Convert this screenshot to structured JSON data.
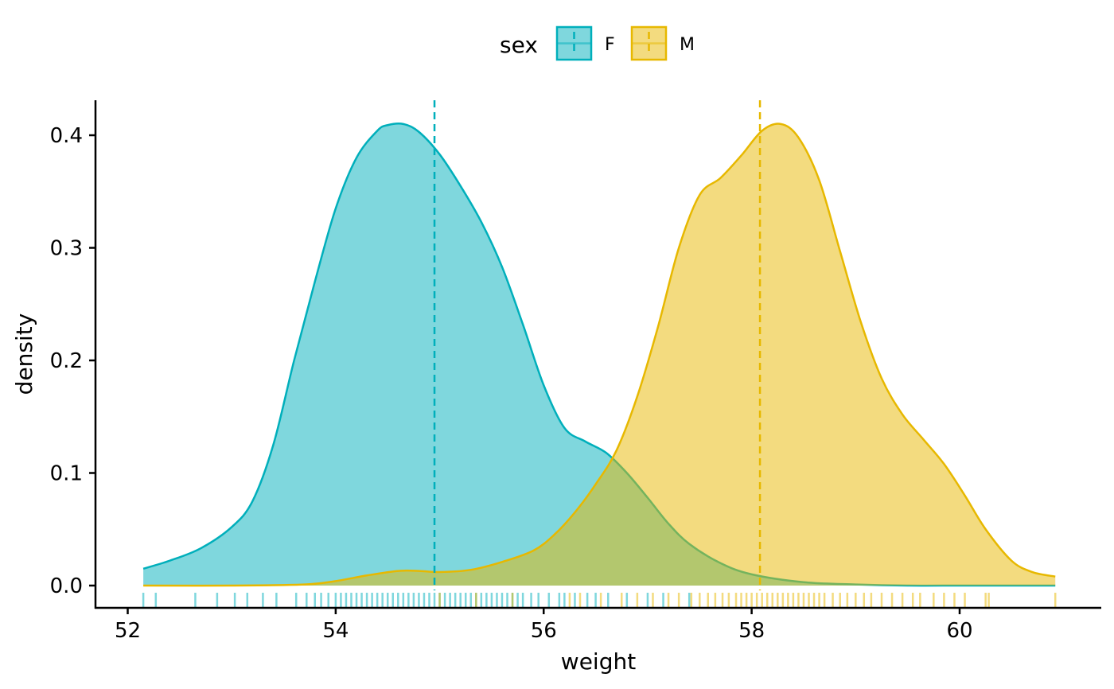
{
  "chart_data": {
    "type": "area",
    "xlabel": "weight",
    "ylabel": "density",
    "xlim": [
      51.8,
      61.7
    ],
    "ylim": [
      -0.02,
      0.43
    ],
    "x_ticks": [
      52,
      54,
      56,
      58,
      60
    ],
    "y_ticks": [
      0.0,
      0.1,
      0.2,
      0.3,
      0.4
    ],
    "y_tick_labels": [
      "0.0",
      "0.1",
      "0.2",
      "0.3",
      "0.4"
    ],
    "grid": false,
    "legend": {
      "title": "sex",
      "position": "top",
      "entries": [
        "F",
        "M"
      ]
    },
    "series": [
      {
        "name": "F",
        "color": "#00AFBB",
        "fill": "#00AFBB",
        "fill_opacity": 0.5,
        "mean": 54.95,
        "x": [
          52.15,
          52.4,
          52.7,
          53.0,
          53.2,
          53.4,
          53.6,
          53.8,
          54.0,
          54.2,
          54.4,
          54.5,
          54.65,
          54.8,
          55.0,
          55.2,
          55.4,
          55.6,
          55.8,
          56.0,
          56.2,
          56.4,
          56.6,
          56.8,
          57.0,
          57.2,
          57.4,
          57.7,
          58.0,
          58.5,
          59.0,
          59.5,
          60.0,
          60.5,
          60.92
        ],
        "y": [
          0.015,
          0.022,
          0.033,
          0.052,
          0.075,
          0.125,
          0.2,
          0.27,
          0.335,
          0.38,
          0.404,
          0.409,
          0.41,
          0.403,
          0.383,
          0.355,
          0.323,
          0.283,
          0.232,
          0.178,
          0.14,
          0.128,
          0.118,
          0.1,
          0.078,
          0.055,
          0.037,
          0.02,
          0.01,
          0.003,
          0.001,
          0.0,
          0.0,
          0.0,
          0.0
        ]
      },
      {
        "name": "M",
        "color": "#E7B800",
        "fill": "#E7B800",
        "fill_opacity": 0.5,
        "mean": 58.08,
        "x": [
          52.15,
          53.0,
          53.7,
          54.0,
          54.3,
          54.6,
          54.8,
          55.0,
          55.3,
          55.6,
          55.9,
          56.1,
          56.3,
          56.5,
          56.7,
          56.9,
          57.1,
          57.3,
          57.5,
          57.7,
          57.9,
          58.1,
          58.28,
          58.45,
          58.65,
          58.85,
          59.05,
          59.25,
          59.45,
          59.65,
          59.85,
          60.05,
          60.25,
          60.5,
          60.7,
          60.92
        ],
        "y": [
          0.0,
          0.0,
          0.001,
          0.004,
          0.009,
          0.013,
          0.013,
          0.012,
          0.014,
          0.021,
          0.031,
          0.045,
          0.065,
          0.09,
          0.12,
          0.168,
          0.23,
          0.3,
          0.347,
          0.362,
          0.382,
          0.404,
          0.41,
          0.398,
          0.36,
          0.297,
          0.234,
          0.184,
          0.152,
          0.13,
          0.108,
          0.08,
          0.05,
          0.022,
          0.012,
          0.008
        ]
      }
    ],
    "rug": {
      "F": [
        52.15,
        52.27,
        52.65,
        52.86,
        53.03,
        53.15,
        53.3,
        53.43,
        53.62,
        53.72,
        53.8,
        53.86,
        53.93,
        54.0,
        54.05,
        54.1,
        54.15,
        54.2,
        54.25,
        54.3,
        54.35,
        54.4,
        54.45,
        54.5,
        54.55,
        54.6,
        54.65,
        54.7,
        54.75,
        54.8,
        54.85,
        54.9,
        54.95,
        55.0,
        55.05,
        55.1,
        55.15,
        55.2,
        55.25,
        55.3,
        55.35,
        55.4,
        55.45,
        55.5,
        55.55,
        55.6,
        55.65,
        55.7,
        55.75,
        55.8,
        55.88,
        55.95,
        56.05,
        56.15,
        56.2,
        56.3,
        56.42,
        56.5,
        56.62,
        56.8,
        57.0,
        57.15,
        57.4
      ],
      "M": [
        55.0,
        55.35,
        55.7,
        56.25,
        56.35,
        56.55,
        56.75,
        56.9,
        57.05,
        57.2,
        57.3,
        57.42,
        57.5,
        57.58,
        57.65,
        57.72,
        57.78,
        57.85,
        57.9,
        57.95,
        58.0,
        58.05,
        58.1,
        58.15,
        58.2,
        58.25,
        58.3,
        58.35,
        58.4,
        58.45,
        58.5,
        58.55,
        58.6,
        58.65,
        58.7,
        58.78,
        58.85,
        58.92,
        59.0,
        59.08,
        59.15,
        59.25,
        59.35,
        59.45,
        59.55,
        59.62,
        59.75,
        59.85,
        59.95,
        60.05,
        60.25,
        60.28,
        60.92
      ]
    }
  }
}
